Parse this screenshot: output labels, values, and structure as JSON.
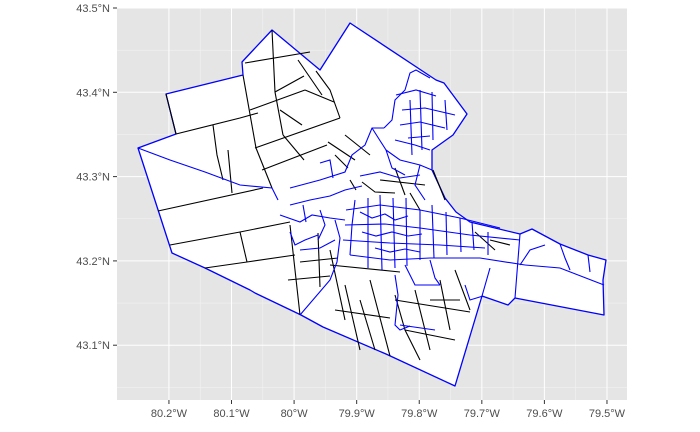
{
  "map": {
    "type": "choropleth-outline",
    "colors": {
      "panel_background": "#e5e5e5",
      "region_fill": "#ffffff",
      "boundary_black": "#000000",
      "boundary_blue": "#0000ff"
    },
    "x_ticks": [
      {
        "label": "80.2°W",
        "lon": -80.2
      },
      {
        "label": "80.1°W",
        "lon": -80.1
      },
      {
        "label": "80°W",
        "lon": -80.0
      },
      {
        "label": "79.9°W",
        "lon": -79.9
      },
      {
        "label": "79.8°W",
        "lon": -79.8
      },
      {
        "label": "79.7°W",
        "lon": -79.7
      },
      {
        "label": "79.6°W",
        "lon": -79.6
      },
      {
        "label": "79.5°W",
        "lon": -79.5
      }
    ],
    "y_ticks": [
      {
        "label": "43.1°N",
        "lat": 43.1
      },
      {
        "label": "43.2°N",
        "lat": 43.2
      },
      {
        "label": "43.3°N",
        "lat": 43.3
      },
      {
        "label": "43.4°N",
        "lat": 43.4
      },
      {
        "label": "43.5°N",
        "lat": 43.5
      }
    ],
    "x_range": [
      -80.283,
      -79.468
    ],
    "y_range": [
      43.035,
      43.5
    ],
    "grid": true
  }
}
